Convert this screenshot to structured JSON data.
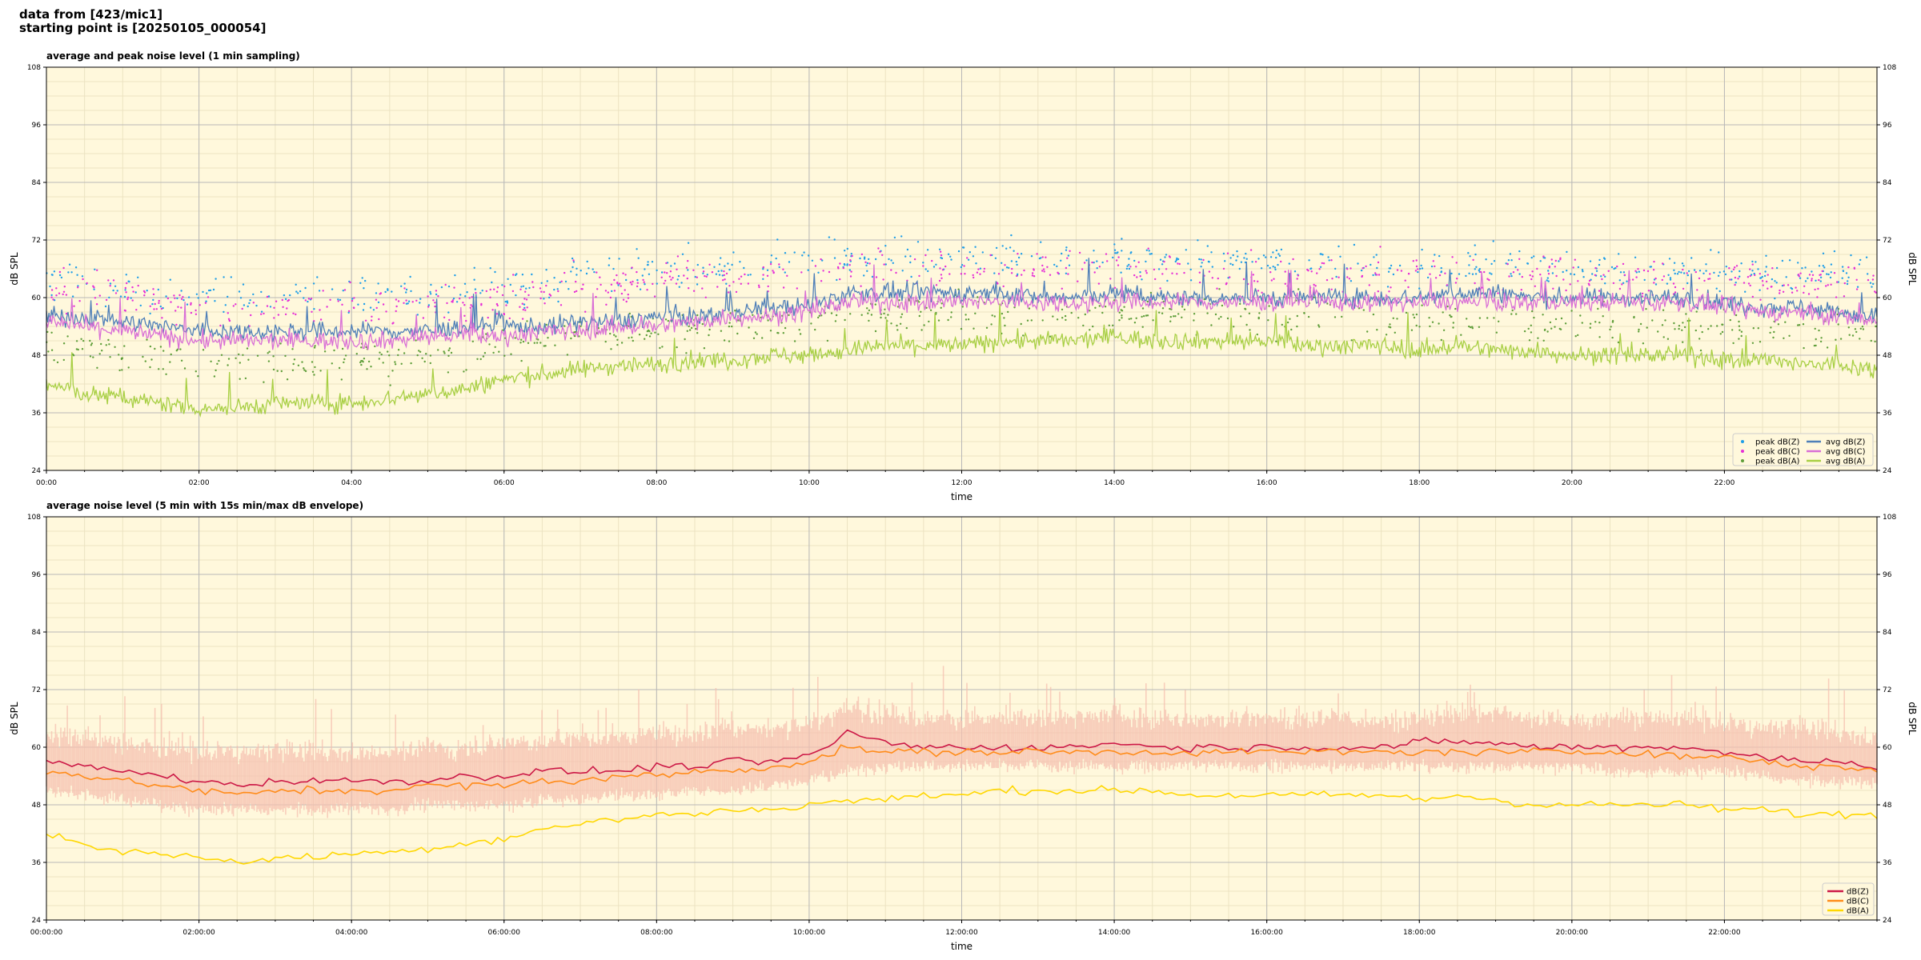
{
  "header": {
    "line1": "data from [423/mic1]",
    "line2": "starting point is [20250105_000054]"
  },
  "colors": {
    "background": "#fff8dc",
    "grid_major": "#b8b8b8",
    "grid_minor": "#ece3c2",
    "peak_z": "#1f9ee8",
    "peak_c": "#e62fd6",
    "peak_a": "#5f9e3a",
    "avg_z": "#4f7fb8",
    "avg_c": "#d96fd6",
    "avg_a": "#a8cf44",
    "dbz": "#cc1846",
    "dbc": "#ff8c1a",
    "dba": "#ffd700",
    "envelope": "#f6c0b0"
  },
  "chart_data": [
    {
      "type": "line",
      "title": "average and peak noise level (1 min sampling)",
      "xlabel": "time",
      "ylabel": "dB SPL",
      "ylabel_right": "dB SPL",
      "xlim_hours": [
        0,
        24
      ],
      "ylim": [
        24,
        108
      ],
      "yticks": [
        24,
        36,
        48,
        60,
        72,
        84,
        96,
        108
      ],
      "xtick_labels": [
        "00:00",
        "02:00",
        "04:00",
        "06:00",
        "08:00",
        "10:00",
        "12:00",
        "14:00",
        "16:00",
        "18:00",
        "20:00",
        "22:00"
      ],
      "grid": true,
      "legend_position": "bottom-right",
      "x_hours": [
        0,
        0.5,
        1,
        1.5,
        2,
        2.5,
        3,
        3.5,
        4,
        4.5,
        5,
        5.5,
        6,
        6.5,
        7,
        7.5,
        8,
        8.5,
        9,
        9.5,
        10,
        10.5,
        11,
        11.5,
        12,
        12.5,
        13,
        13.5,
        14,
        14.5,
        15,
        15.5,
        16,
        16.5,
        17,
        17.5,
        18,
        18.5,
        19,
        19.5,
        20,
        20.5,
        21,
        21.5,
        22,
        22.5,
        23,
        23.5,
        24
      ],
      "series": [
        {
          "name": "peak dB(Z)",
          "kind": "scatter",
          "color_key": "peak_z",
          "values": [
            64,
            63,
            62,
            61,
            60,
            60,
            60,
            60,
            60,
            60,
            60,
            61,
            62,
            63,
            64,
            65,
            66,
            66,
            66,
            67,
            67,
            68,
            68,
            68,
            68,
            68,
            68,
            68,
            68,
            68,
            68,
            67,
            67,
            67,
            67,
            67,
            67,
            67,
            67,
            67,
            67,
            66,
            66,
            66,
            66,
            65,
            65,
            65,
            65
          ]
        },
        {
          "name": "peak dB(C)",
          "kind": "scatter",
          "color_key": "peak_c",
          "values": [
            62,
            61,
            60,
            59,
            58,
            58,
            58,
            58,
            58,
            58,
            58,
            59,
            60,
            61,
            62,
            63,
            64,
            64,
            64,
            65,
            65,
            66,
            66,
            66,
            66,
            66,
            66,
            66,
            66,
            66,
            66,
            65,
            65,
            65,
            65,
            65,
            65,
            65,
            65,
            65,
            65,
            64,
            64,
            64,
            64,
            63,
            63,
            63,
            63
          ]
        },
        {
          "name": "peak dB(A)",
          "kind": "scatter",
          "color_key": "peak_a",
          "values": [
            51,
            49,
            48,
            47,
            46,
            46,
            46,
            46,
            47,
            47,
            48,
            49,
            50,
            51,
            52,
            53,
            53,
            54,
            54,
            55,
            55,
            56,
            56,
            56,
            56,
            56,
            56,
            56,
            57,
            57,
            57,
            56,
            56,
            56,
            56,
            55,
            55,
            55,
            55,
            55,
            55,
            54,
            54,
            54,
            54,
            53,
            53,
            53,
            53
          ]
        },
        {
          "name": "avg dB(Z)",
          "kind": "line",
          "color_key": "avg_z",
          "values": [
            56,
            56,
            55,
            54,
            53,
            53,
            53,
            53,
            53,
            53,
            53,
            54,
            54,
            54,
            55,
            55,
            56,
            56,
            57,
            58,
            58,
            61,
            61,
            61,
            61,
            61,
            60,
            60,
            61,
            60,
            60,
            60,
            60,
            60,
            60,
            60,
            60,
            61,
            61,
            60,
            60,
            60,
            60,
            60,
            59,
            58,
            58,
            57,
            56
          ]
        },
        {
          "name": "avg dB(C)",
          "kind": "line",
          "color_key": "avg_c",
          "values": [
            55,
            54,
            53,
            52,
            51,
            51,
            51,
            51,
            51,
            51,
            52,
            52,
            52,
            53,
            53,
            54,
            54,
            55,
            56,
            56,
            57,
            59,
            59,
            59,
            59,
            59,
            59,
            59,
            59,
            59,
            59,
            59,
            59,
            59,
            59,
            59,
            59,
            59,
            59,
            59,
            59,
            59,
            59,
            59,
            58,
            57,
            57,
            56,
            55
          ]
        },
        {
          "name": "avg dB(A)",
          "kind": "line",
          "color_key": "avg_a",
          "values": [
            42,
            40,
            39,
            38,
            37,
            37,
            38,
            38,
            38,
            39,
            40,
            41,
            43,
            44,
            45,
            46,
            46,
            47,
            47,
            48,
            48,
            49,
            50,
            50,
            50,
            51,
            51,
            51,
            52,
            51,
            51,
            51,
            51,
            50,
            50,
            50,
            49,
            50,
            49,
            49,
            48,
            48,
            48,
            48,
            47,
            47,
            46,
            46,
            45
          ]
        }
      ]
    },
    {
      "type": "line",
      "title": "average noise level (5 min with 15s min/max dB envelope)",
      "xlabel": "time",
      "ylabel": "dB SPL",
      "ylabel_right": "dB SPL",
      "xlim_hours": [
        0,
        24
      ],
      "ylim": [
        24,
        108
      ],
      "yticks": [
        24,
        36,
        48,
        60,
        72,
        84,
        96,
        108
      ],
      "xtick_labels": [
        "00:00:00",
        "02:00:00",
        "04:00:00",
        "06:00:00",
        "08:00:00",
        "10:00:00",
        "12:00:00",
        "14:00:00",
        "16:00:00",
        "18:00:00",
        "20:00:00",
        "22:00:00"
      ],
      "grid": true,
      "legend_position": "bottom-right",
      "x_hours": [
        0,
        0.5,
        1,
        1.5,
        2,
        2.5,
        3,
        3.5,
        4,
        4.5,
        5,
        5.5,
        6,
        6.5,
        7,
        7.5,
        8,
        8.5,
        9,
        9.5,
        10,
        10.5,
        11,
        11.5,
        12,
        12.5,
        13,
        13.5,
        14,
        14.5,
        15,
        15.5,
        16,
        16.5,
        17,
        17.5,
        18,
        18.5,
        19,
        19.5,
        20,
        20.5,
        21,
        21.5,
        22,
        22.5,
        23,
        23.5,
        24
      ],
      "series": [
        {
          "name": "dB(Z)",
          "color_key": "dbz",
          "values": [
            57,
            56,
            55,
            54,
            53,
            52,
            53,
            53,
            53,
            53,
            53,
            54,
            54,
            55,
            55,
            55,
            56,
            56,
            57,
            57,
            58,
            63,
            61,
            60,
            60,
            60,
            60,
            60,
            61,
            60,
            60,
            60,
            60,
            60,
            60,
            60,
            61,
            61,
            61,
            60,
            60,
            60,
            60,
            60,
            59,
            58,
            57,
            57,
            56
          ]
        },
        {
          "name": "dB(C)",
          "color_key": "dbc",
          "values": [
            55,
            54,
            53,
            52,
            51,
            50,
            51,
            51,
            51,
            51,
            52,
            52,
            52,
            53,
            53,
            54,
            54,
            55,
            55,
            56,
            57,
            60,
            59,
            59,
            59,
            59,
            59,
            59,
            59,
            59,
            59,
            59,
            59,
            59,
            59,
            59,
            59,
            59,
            59,
            59,
            59,
            59,
            59,
            58,
            58,
            57,
            56,
            56,
            55
          ]
        },
        {
          "name": "dB(A)",
          "color_key": "dba",
          "values": [
            42,
            40,
            38,
            38,
            37,
            36,
            37,
            37,
            38,
            38,
            39,
            40,
            41,
            43,
            44,
            45,
            46,
            46,
            47,
            47,
            48,
            49,
            49,
            50,
            50,
            51,
            51,
            51,
            51,
            51,
            50,
            50,
            50,
            50,
            50,
            50,
            49,
            50,
            49,
            48,
            48,
            48,
            48,
            48,
            47,
            47,
            46,
            46,
            46
          ]
        }
      ],
      "envelope": {
        "color_key": "envelope",
        "low": [
          51,
          50,
          49,
          48,
          47,
          47,
          47,
          47,
          47,
          47,
          48,
          48,
          48,
          49,
          49,
          50,
          50,
          51,
          51,
          52,
          53,
          55,
          56,
          56,
          56,
          56,
          56,
          56,
          56,
          56,
          56,
          56,
          56,
          56,
          56,
          56,
          56,
          56,
          56,
          56,
          56,
          55,
          55,
          55,
          55,
          54,
          53,
          53,
          52
        ],
        "high": [
          63,
          62,
          61,
          60,
          59,
          59,
          59,
          59,
          59,
          59,
          60,
          60,
          61,
          61,
          62,
          62,
          63,
          63,
          64,
          64,
          65,
          68,
          67,
          66,
          66,
          66,
          66,
          66,
          67,
          66,
          66,
          66,
          66,
          66,
          66,
          66,
          66,
          67,
          67,
          66,
          66,
          66,
          66,
          66,
          65,
          64,
          64,
          63,
          62
        ]
      }
    }
  ]
}
